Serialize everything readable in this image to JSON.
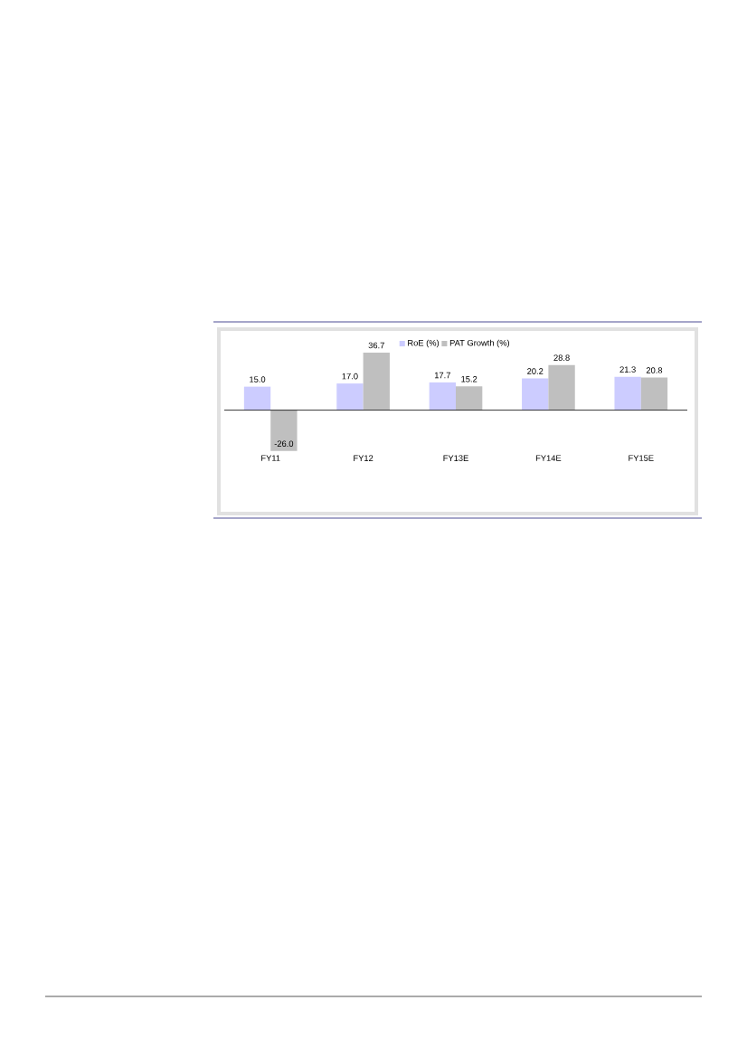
{
  "chart_data": {
    "type": "bar",
    "categories": [
      "FY11",
      "FY12",
      "FY13E",
      "FY14E",
      "FY15E"
    ],
    "series": [
      {
        "name": "RoE (%)",
        "color": "#ccccff",
        "values": [
          15.0,
          17.0,
          17.7,
          20.2,
          21.3
        ],
        "value_labels": [
          "15.0",
          "17.0",
          "17.7",
          "20.2",
          "21.3"
        ]
      },
      {
        "name": "PAT Growth (%)",
        "color": "#bfbfbf",
        "values": [
          -26.0,
          36.7,
          15.2,
          28.8,
          20.8
        ],
        "value_labels": [
          "-26.0",
          "36.7",
          "15.2",
          "28.8",
          "20.8"
        ]
      }
    ],
    "legend": "top"
  }
}
